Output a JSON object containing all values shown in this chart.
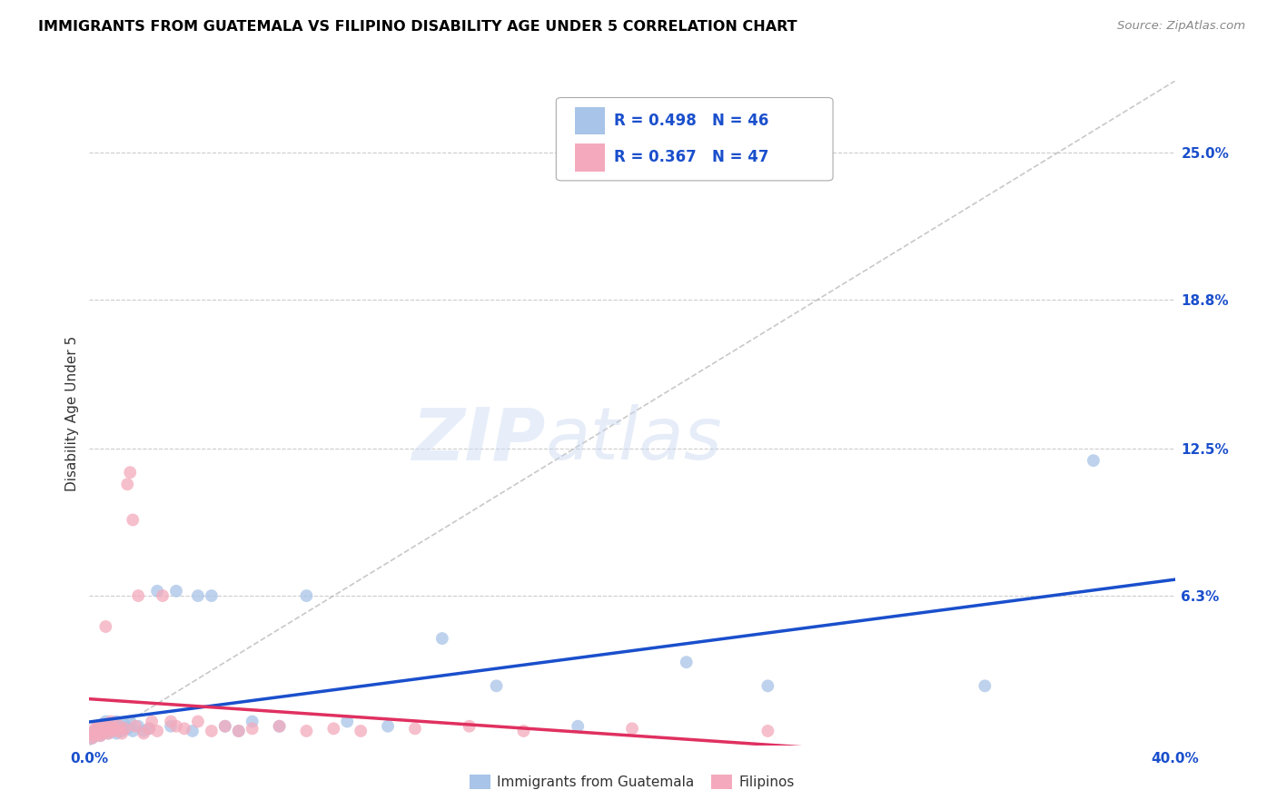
{
  "title": "IMMIGRANTS FROM GUATEMALA VS FILIPINO DISABILITY AGE UNDER 5 CORRELATION CHART",
  "source": "Source: ZipAtlas.com",
  "ylabel": "Disability Age Under 5",
  "xlim": [
    0.0,
    0.4
  ],
  "ylim": [
    0.0,
    0.28
  ],
  "ytick_positions": [
    0.0,
    0.063,
    0.125,
    0.188,
    0.25
  ],
  "ytick_labels": [
    "",
    "6.3%",
    "12.5%",
    "18.8%",
    "25.0%"
  ],
  "blue_color": "#A8C4E8",
  "pink_color": "#F4AABC",
  "blue_line_color": "#1A4FCC",
  "pink_line_color": "#E03060",
  "diagonal_color": "#BBBBBB",
  "watermark_zip": "ZIP",
  "watermark_atlas": "atlas",
  "guatemala_x": [
    0.001,
    0.002,
    0.002,
    0.003,
    0.003,
    0.004,
    0.004,
    0.005,
    0.005,
    0.006,
    0.006,
    0.007,
    0.008,
    0.008,
    0.009,
    0.01,
    0.01,
    0.011,
    0.012,
    0.013,
    0.014,
    0.015,
    0.016,
    0.018,
    0.02,
    0.022,
    0.025,
    0.03,
    0.032,
    0.038,
    0.04,
    0.045,
    0.05,
    0.055,
    0.06,
    0.07,
    0.08,
    0.095,
    0.11,
    0.13,
    0.15,
    0.18,
    0.22,
    0.25,
    0.33,
    0.37
  ],
  "guatemala_y": [
    0.003,
    0.004,
    0.006,
    0.005,
    0.007,
    0.004,
    0.008,
    0.005,
    0.009,
    0.006,
    0.01,
    0.005,
    0.006,
    0.008,
    0.007,
    0.005,
    0.01,
    0.008,
    0.006,
    0.009,
    0.007,
    0.01,
    0.006,
    0.008,
    0.006,
    0.007,
    0.065,
    0.008,
    0.065,
    0.006,
    0.063,
    0.063,
    0.008,
    0.006,
    0.01,
    0.008,
    0.063,
    0.01,
    0.008,
    0.045,
    0.025,
    0.008,
    0.035,
    0.025,
    0.025,
    0.12
  ],
  "filipino_x": [
    0.001,
    0.001,
    0.002,
    0.002,
    0.003,
    0.003,
    0.004,
    0.004,
    0.005,
    0.005,
    0.006,
    0.007,
    0.007,
    0.008,
    0.008,
    0.009,
    0.01,
    0.011,
    0.012,
    0.013,
    0.014,
    0.015,
    0.016,
    0.017,
    0.018,
    0.02,
    0.022,
    0.023,
    0.025,
    0.027,
    0.03,
    0.032,
    0.035,
    0.04,
    0.045,
    0.05,
    0.055,
    0.06,
    0.07,
    0.08,
    0.09,
    0.1,
    0.12,
    0.14,
    0.16,
    0.2,
    0.25
  ],
  "filipino_y": [
    0.003,
    0.005,
    0.004,
    0.007,
    0.005,
    0.008,
    0.004,
    0.006,
    0.005,
    0.008,
    0.05,
    0.005,
    0.008,
    0.006,
    0.01,
    0.007,
    0.006,
    0.008,
    0.005,
    0.007,
    0.11,
    0.115,
    0.095,
    0.008,
    0.063,
    0.005,
    0.007,
    0.01,
    0.006,
    0.063,
    0.01,
    0.008,
    0.007,
    0.01,
    0.006,
    0.008,
    0.006,
    0.007,
    0.008,
    0.006,
    0.007,
    0.006,
    0.007,
    0.008,
    0.006,
    0.007,
    0.006
  ]
}
